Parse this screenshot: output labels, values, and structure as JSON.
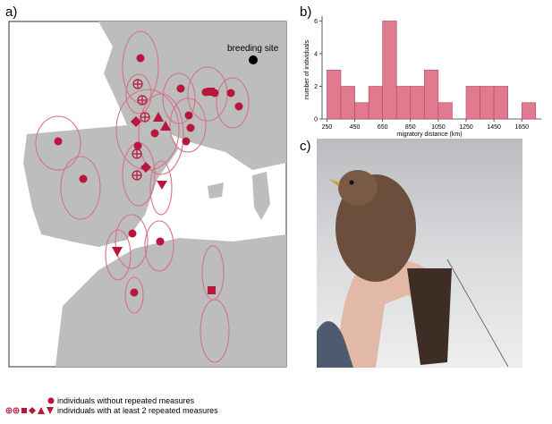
{
  "panel_labels": [
    "a)",
    "b)",
    "c)"
  ],
  "map": {
    "breeding_label": "breeding site"
  },
  "legend": [
    "individuals without repeated measures",
    "individuals with at least 2 repeated measures"
  ],
  "chart_data": {
    "type": "histogram",
    "bins": [
      250,
      350,
      450,
      550,
      650,
      750,
      850,
      950,
      1050,
      1150,
      1250,
      1350,
      1450,
      1550,
      1650,
      1750
    ],
    "values": [
      3,
      2,
      1,
      2,
      6,
      2,
      2,
      3,
      1,
      0,
      2,
      2,
      2,
      0,
      1
    ],
    "color": "#e07a8f",
    "xlim": [
      215,
      1790
    ],
    "ylim": [
      0,
      6.3
    ],
    "xticks": [
      250,
      450,
      650,
      850,
      1050,
      1250,
      1450,
      1650
    ],
    "yticks": [
      0,
      2,
      4,
      6
    ],
    "xlabel": "migratory distance (km)",
    "ylabel": "number of individuals"
  }
}
